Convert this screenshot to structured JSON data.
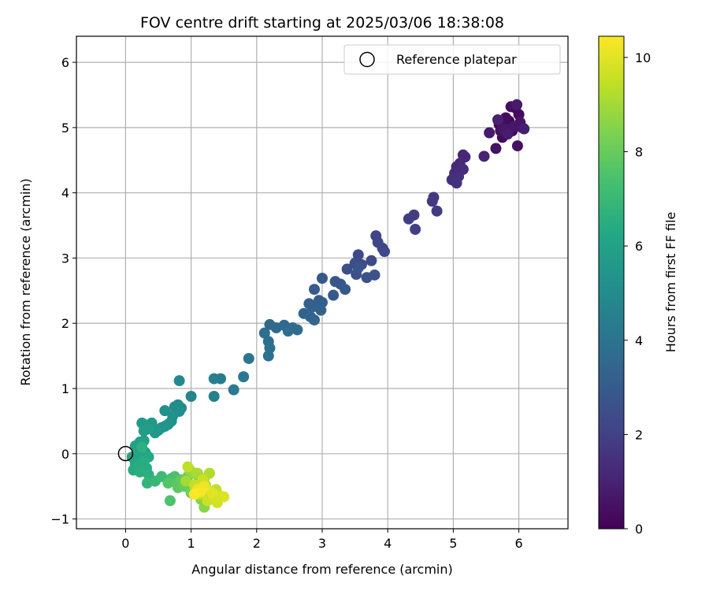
{
  "chart_data": {
    "type": "scatter",
    "title": "FOV centre drift starting at 2025/03/06 18:38:08",
    "xlabel": "Angular distance from reference (arcmin)",
    "ylabel": "Rotation from reference (arcmin)",
    "xlim": [
      -0.75,
      6.75
    ],
    "ylim": [
      -1.15,
      6.4
    ],
    "xticks": [
      0,
      1,
      2,
      3,
      4,
      5,
      6
    ],
    "yticks": [
      -1,
      0,
      1,
      2,
      3,
      4,
      5,
      6
    ],
    "grid": true,
    "legend": {
      "position": "top-right",
      "entries": [
        "Reference platepar"
      ]
    },
    "reference_point": {
      "label": "Reference platepar",
      "x": 0,
      "y": 0,
      "marker": "open-circle"
    },
    "colorbar": {
      "label": "Hours from first FF file",
      "range": [
        0,
        10.45
      ],
      "ticks": [
        0,
        2,
        4,
        6,
        8,
        10
      ],
      "colormap": "viridis"
    },
    "points": [
      {
        "x": 5.85,
        "y": 5.1,
        "t": 0.0
      },
      {
        "x": 5.95,
        "y": 5.3,
        "t": 0.05
      },
      {
        "x": 5.7,
        "y": 5.05,
        "t": 0.1
      },
      {
        "x": 6.05,
        "y": 5.0,
        "t": 0.15
      },
      {
        "x": 5.9,
        "y": 4.95,
        "t": 0.2
      },
      {
        "x": 5.75,
        "y": 4.85,
        "t": 0.25
      },
      {
        "x": 6.0,
        "y": 5.2,
        "t": 0.3
      },
      {
        "x": 5.8,
        "y": 5.15,
        "t": 0.35
      },
      {
        "x": 5.88,
        "y": 5.32,
        "t": 0.4
      },
      {
        "x": 5.98,
        "y": 4.72,
        "t": 0.45
      },
      {
        "x": 5.65,
        "y": 4.68,
        "t": 0.5
      },
      {
        "x": 5.72,
        "y": 4.95,
        "t": 0.55
      },
      {
        "x": 6.02,
        "y": 5.08,
        "t": 0.6
      },
      {
        "x": 5.92,
        "y": 5.02,
        "t": 0.65
      },
      {
        "x": 5.78,
        "y": 4.98,
        "t": 0.7
      },
      {
        "x": 5.55,
        "y": 4.92,
        "t": 0.75
      },
      {
        "x": 5.97,
        "y": 5.35,
        "t": 0.8
      },
      {
        "x": 5.83,
        "y": 4.9,
        "t": 0.85
      },
      {
        "x": 6.08,
        "y": 4.98,
        "t": 0.9
      },
      {
        "x": 5.68,
        "y": 5.12,
        "t": 0.95
      },
      {
        "x": 5.47,
        "y": 4.56,
        "t": 1.0
      },
      {
        "x": 5.15,
        "y": 4.58,
        "t": 1.1
      },
      {
        "x": 5.18,
        "y": 4.55,
        "t": 1.15
      },
      {
        "x": 5.1,
        "y": 4.45,
        "t": 1.2
      },
      {
        "x": 5.05,
        "y": 4.4,
        "t": 1.25
      },
      {
        "x": 5.15,
        "y": 4.36,
        "t": 1.3
      },
      {
        "x": 5.02,
        "y": 4.3,
        "t": 1.35
      },
      {
        "x": 5.08,
        "y": 4.25,
        "t": 1.4
      },
      {
        "x": 4.98,
        "y": 4.2,
        "t": 1.45
      },
      {
        "x": 5.05,
        "y": 4.15,
        "t": 1.5
      },
      {
        "x": 4.7,
        "y": 3.93,
        "t": 1.7
      },
      {
        "x": 4.68,
        "y": 3.87,
        "t": 1.75
      },
      {
        "x": 4.75,
        "y": 3.72,
        "t": 1.8
      },
      {
        "x": 4.4,
        "y": 3.66,
        "t": 1.85
      },
      {
        "x": 4.32,
        "y": 3.6,
        "t": 1.9
      },
      {
        "x": 4.42,
        "y": 3.44,
        "t": 1.95
      },
      {
        "x": 3.82,
        "y": 3.34,
        "t": 2.1
      },
      {
        "x": 3.85,
        "y": 3.24,
        "t": 2.15
      },
      {
        "x": 3.92,
        "y": 3.15,
        "t": 2.2
      },
      {
        "x": 3.95,
        "y": 3.1,
        "t": 2.25
      },
      {
        "x": 3.55,
        "y": 3.05,
        "t": 2.3
      },
      {
        "x": 3.75,
        "y": 2.96,
        "t": 2.35
      },
      {
        "x": 3.6,
        "y": 2.9,
        "t": 2.4
      },
      {
        "x": 3.5,
        "y": 2.92,
        "t": 2.45
      },
      {
        "x": 3.38,
        "y": 2.83,
        "t": 2.5
      },
      {
        "x": 3.52,
        "y": 2.75,
        "t": 2.55
      },
      {
        "x": 3.68,
        "y": 2.7,
        "t": 2.6
      },
      {
        "x": 3.8,
        "y": 2.74,
        "t": 2.65
      },
      {
        "x": 3.55,
        "y": 2.85,
        "t": 2.7
      },
      {
        "x": 3.2,
        "y": 2.64,
        "t": 2.75
      },
      {
        "x": 3.28,
        "y": 2.6,
        "t": 2.8
      },
      {
        "x": 3.0,
        "y": 2.69,
        "t": 2.85
      },
      {
        "x": 3.35,
        "y": 2.52,
        "t": 2.9
      },
      {
        "x": 3.17,
        "y": 2.43,
        "t": 2.95
      },
      {
        "x": 2.88,
        "y": 2.52,
        "t": 3.0
      },
      {
        "x": 2.95,
        "y": 2.35,
        "t": 3.05
      },
      {
        "x": 3.0,
        "y": 2.32,
        "t": 3.1
      },
      {
        "x": 2.8,
        "y": 2.3,
        "t": 3.15
      },
      {
        "x": 2.85,
        "y": 2.25,
        "t": 3.2
      },
      {
        "x": 2.98,
        "y": 2.2,
        "t": 3.25
      },
      {
        "x": 2.72,
        "y": 2.15,
        "t": 3.3
      },
      {
        "x": 2.82,
        "y": 2.1,
        "t": 3.35
      },
      {
        "x": 2.88,
        "y": 2.05,
        "t": 3.4
      },
      {
        "x": 2.42,
        "y": 1.97,
        "t": 3.5
      },
      {
        "x": 2.2,
        "y": 1.98,
        "t": 3.55
      },
      {
        "x": 2.3,
        "y": 1.93,
        "t": 3.6
      },
      {
        "x": 2.55,
        "y": 1.93,
        "t": 3.65
      },
      {
        "x": 2.62,
        "y": 1.9,
        "t": 3.7
      },
      {
        "x": 2.48,
        "y": 1.88,
        "t": 3.75
      },
      {
        "x": 2.12,
        "y": 1.85,
        "t": 3.8
      },
      {
        "x": 2.18,
        "y": 1.72,
        "t": 3.85
      },
      {
        "x": 2.2,
        "y": 1.62,
        "t": 3.9
      },
      {
        "x": 2.18,
        "y": 1.5,
        "t": 3.95
      },
      {
        "x": 1.88,
        "y": 1.46,
        "t": 4.05
      },
      {
        "x": 1.8,
        "y": 1.18,
        "t": 4.2
      },
      {
        "x": 1.65,
        "y": 0.98,
        "t": 4.3
      },
      {
        "x": 1.45,
        "y": 1.15,
        "t": 4.4
      },
      {
        "x": 1.35,
        "y": 1.15,
        "t": 4.45
      },
      {
        "x": 1.35,
        "y": 0.88,
        "t": 4.5
      },
      {
        "x": 1.0,
        "y": 0.88,
        "t": 4.7
      },
      {
        "x": 0.82,
        "y": 1.12,
        "t": 4.9
      },
      {
        "x": 0.8,
        "y": 0.75,
        "t": 5.0
      },
      {
        "x": 0.85,
        "y": 0.7,
        "t": 5.05
      },
      {
        "x": 0.75,
        "y": 0.72,
        "t": 5.1
      },
      {
        "x": 0.82,
        "y": 0.65,
        "t": 5.15
      },
      {
        "x": 0.6,
        "y": 0.66,
        "t": 5.2
      },
      {
        "x": 0.72,
        "y": 0.58,
        "t": 5.25
      },
      {
        "x": 0.7,
        "y": 0.5,
        "t": 5.3
      },
      {
        "x": 0.65,
        "y": 0.45,
        "t": 5.35
      },
      {
        "x": 0.6,
        "y": 0.42,
        "t": 5.4
      },
      {
        "x": 0.55,
        "y": 0.4,
        "t": 5.45
      },
      {
        "x": 0.5,
        "y": 0.36,
        "t": 5.5
      },
      {
        "x": 0.45,
        "y": 0.32,
        "t": 5.55
      },
      {
        "x": 0.4,
        "y": 0.47,
        "t": 5.6
      },
      {
        "x": 0.25,
        "y": 0.47,
        "t": 5.65
      },
      {
        "x": 0.32,
        "y": 0.44,
        "t": 5.7
      },
      {
        "x": 0.28,
        "y": 0.35,
        "t": 5.75
      },
      {
        "x": 0.35,
        "y": 0.38,
        "t": 5.8
      },
      {
        "x": 0.22,
        "y": 0.18,
        "t": 5.85
      },
      {
        "x": 0.15,
        "y": 0.12,
        "t": 5.9
      },
      {
        "x": 0.28,
        "y": 0.2,
        "t": 5.95
      },
      {
        "x": 0.2,
        "y": 0.05,
        "t": 6.0
      },
      {
        "x": 0.3,
        "y": 0.02,
        "t": 6.05
      },
      {
        "x": 0.18,
        "y": -0.02,
        "t": 6.1
      },
      {
        "x": 0.1,
        "y": -0.05,
        "t": 6.15
      },
      {
        "x": 0.25,
        "y": -0.08,
        "t": 6.2
      },
      {
        "x": 0.35,
        "y": -0.05,
        "t": 6.25
      },
      {
        "x": 0.15,
        "y": -0.15,
        "t": 6.3
      },
      {
        "x": 0.12,
        "y": -0.25,
        "t": 6.35
      },
      {
        "x": 0.2,
        "y": -0.18,
        "t": 6.4
      },
      {
        "x": 0.28,
        "y": -0.12,
        "t": 6.45
      },
      {
        "x": 0.32,
        "y": -0.22,
        "t": 6.5
      },
      {
        "x": 0.22,
        "y": -0.28,
        "t": 6.55
      },
      {
        "x": 0.35,
        "y": -0.32,
        "t": 6.6
      },
      {
        "x": 0.25,
        "y": 0.1,
        "t": 6.65
      },
      {
        "x": 0.33,
        "y": -0.45,
        "t": 6.8
      },
      {
        "x": 0.45,
        "y": -0.42,
        "t": 6.9
      },
      {
        "x": 0.55,
        "y": -0.35,
        "t": 7.1
      },
      {
        "x": 0.7,
        "y": -0.38,
        "t": 7.3
      },
      {
        "x": 0.75,
        "y": -0.35,
        "t": 7.4
      },
      {
        "x": 0.68,
        "y": -0.72,
        "t": 7.5
      },
      {
        "x": 0.65,
        "y": -0.45,
        "t": 7.6
      },
      {
        "x": 0.78,
        "y": -0.45,
        "t": 7.7
      },
      {
        "x": 0.8,
        "y": -0.52,
        "t": 7.8
      },
      {
        "x": 0.85,
        "y": -0.4,
        "t": 7.9
      },
      {
        "x": 0.9,
        "y": -0.5,
        "t": 8.0
      },
      {
        "x": 0.95,
        "y": -0.35,
        "t": 8.1
      },
      {
        "x": 1.0,
        "y": -0.6,
        "t": 8.2
      },
      {
        "x": 1.05,
        "y": -0.55,
        "t": 8.3
      },
      {
        "x": 1.1,
        "y": -0.45,
        "t": 8.4
      },
      {
        "x": 1.15,
        "y": -0.7,
        "t": 8.5
      },
      {
        "x": 1.2,
        "y": -0.82,
        "t": 8.6
      },
      {
        "x": 1.25,
        "y": -0.58,
        "t": 8.7
      },
      {
        "x": 0.98,
        "y": -0.25,
        "t": 8.8
      },
      {
        "x": 1.05,
        "y": -0.3,
        "t": 8.9
      },
      {
        "x": 0.92,
        "y": -0.42,
        "t": 9.0
      },
      {
        "x": 1.1,
        "y": -0.3,
        "t": 9.1
      },
      {
        "x": 1.2,
        "y": -0.38,
        "t": 9.15
      },
      {
        "x": 1.28,
        "y": -0.3,
        "t": 9.2
      },
      {
        "x": 1.15,
        "y": -0.52,
        "t": 9.25
      },
      {
        "x": 1.22,
        "y": -0.48,
        "t": 9.3
      },
      {
        "x": 1.3,
        "y": -0.62,
        "t": 9.35
      },
      {
        "x": 1.38,
        "y": -0.55,
        "t": 9.4
      },
      {
        "x": 0.95,
        "y": -0.2,
        "t": 9.45
      },
      {
        "x": 1.05,
        "y": -0.48,
        "t": 9.5
      },
      {
        "x": 1.12,
        "y": -0.62,
        "t": 9.55
      },
      {
        "x": 1.18,
        "y": -0.4,
        "t": 9.6
      },
      {
        "x": 1.25,
        "y": -0.72,
        "t": 9.65
      },
      {
        "x": 1.35,
        "y": -0.7,
        "t": 9.7
      },
      {
        "x": 1.4,
        "y": -0.75,
        "t": 9.75
      },
      {
        "x": 1.45,
        "y": -0.65,
        "t": 9.8
      },
      {
        "x": 1.5,
        "y": -0.66,
        "t": 9.9
      },
      {
        "x": 1.32,
        "y": -0.6,
        "t": 10.0
      },
      {
        "x": 1.1,
        "y": -0.55,
        "t": 10.1
      },
      {
        "x": 1.2,
        "y": -0.5,
        "t": 10.2
      },
      {
        "x": 1.15,
        "y": -0.58,
        "t": 10.3
      },
      {
        "x": 1.05,
        "y": -0.62,
        "t": 10.4
      }
    ]
  }
}
